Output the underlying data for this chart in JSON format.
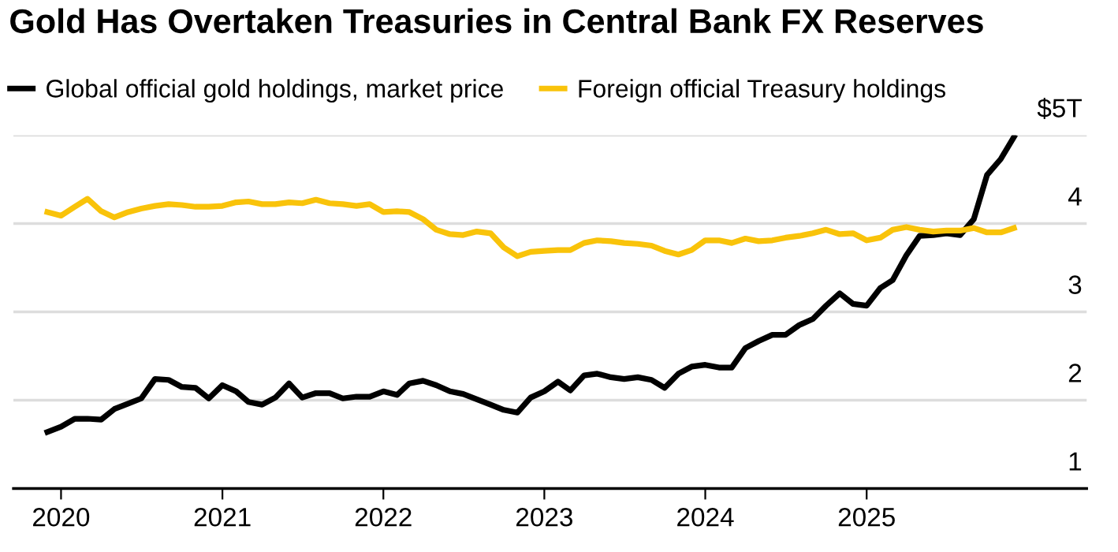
{
  "chart_data": {
    "type": "line",
    "title": "Gold Has Overtaken Treasuries in Central Bank FX Reserves",
    "x": [
      "2019-12",
      "2020-01",
      "2020-02",
      "2020-03",
      "2020-04",
      "2020-05",
      "2020-06",
      "2020-07",
      "2020-08",
      "2020-09",
      "2020-10",
      "2020-11",
      "2020-12",
      "2021-01",
      "2021-02",
      "2021-03",
      "2021-04",
      "2021-05",
      "2021-06",
      "2021-07",
      "2021-08",
      "2021-09",
      "2021-10",
      "2021-11",
      "2021-12",
      "2022-01",
      "2022-02",
      "2022-03",
      "2022-04",
      "2022-05",
      "2022-06",
      "2022-07",
      "2022-08",
      "2022-09",
      "2022-10",
      "2022-11",
      "2022-12",
      "2023-01",
      "2023-02",
      "2023-03",
      "2023-04",
      "2023-05",
      "2023-06",
      "2023-07",
      "2023-08",
      "2023-09",
      "2023-10",
      "2023-11",
      "2023-12",
      "2024-01",
      "2024-02",
      "2024-03",
      "2024-04",
      "2024-05",
      "2024-06",
      "2024-07",
      "2024-08",
      "2024-09",
      "2024-10",
      "2024-11",
      "2024-12",
      "2025-01",
      "2025-02",
      "2025-03",
      "2025-04",
      "2025-05",
      "2025-06",
      "2025-07",
      "2025-08",
      "2025-09",
      "2025-10",
      "2025-11",
      "2025-12"
    ],
    "series": [
      {
        "name": "Global official gold holdings, market price",
        "color": "#000000",
        "values": [
          1.64,
          1.7,
          1.79,
          1.79,
          1.78,
          1.9,
          1.96,
          2.02,
          2.24,
          2.23,
          2.15,
          2.14,
          2.02,
          2.17,
          2.1,
          1.98,
          1.95,
          2.03,
          2.19,
          2.03,
          2.08,
          2.08,
          2.02,
          2.04,
          2.04,
          2.1,
          2.06,
          2.19,
          2.22,
          2.17,
          2.1,
          2.07,
          2.01,
          1.95,
          1.89,
          1.86,
          2.03,
          2.1,
          2.21,
          2.11,
          2.28,
          2.3,
          2.26,
          2.24,
          2.26,
          2.23,
          2.14,
          2.3,
          2.38,
          2.4,
          2.37,
          2.37,
          2.59,
          2.67,
          2.74,
          2.74,
          2.85,
          2.92,
          3.07,
          3.21,
          3.09,
          3.07,
          3.27,
          3.36,
          3.64,
          3.86,
          3.87,
          3.89,
          3.87,
          4.05,
          4.55,
          4.73,
          4.98
        ]
      },
      {
        "name": "Foreign official Treasury holdings",
        "color": "#f9c30a",
        "values": [
          4.13,
          4.09,
          4.19,
          4.28,
          4.14,
          4.07,
          4.13,
          4.17,
          4.2,
          4.22,
          4.21,
          4.19,
          4.19,
          4.2,
          4.24,
          4.25,
          4.22,
          4.22,
          4.24,
          4.23,
          4.27,
          4.23,
          4.22,
          4.2,
          4.22,
          4.13,
          4.14,
          4.13,
          4.05,
          3.93,
          3.88,
          3.87,
          3.91,
          3.89,
          3.73,
          3.63,
          3.68,
          3.69,
          3.7,
          3.7,
          3.78,
          3.81,
          3.8,
          3.78,
          3.77,
          3.75,
          3.69,
          3.65,
          3.7,
          3.81,
          3.81,
          3.78,
          3.83,
          3.8,
          3.81,
          3.84,
          3.86,
          3.89,
          3.93,
          3.88,
          3.89,
          3.81,
          3.84,
          3.93,
          3.96,
          3.93,
          3.91,
          3.92,
          3.92,
          3.95,
          3.9,
          3.9,
          3.95
        ]
      }
    ],
    "xlim": [
      "2019-09-15",
      "2026-05-15"
    ],
    "xticks": [
      "2020",
      "2021",
      "2022",
      "2023",
      "2024",
      "2025"
    ],
    "ylim": [
      1,
      5
    ],
    "yticks": [
      1,
      2,
      3,
      4,
      {
        "value": 5,
        "label": "$5T"
      }
    ],
    "grid": "y",
    "legend": "top left"
  }
}
